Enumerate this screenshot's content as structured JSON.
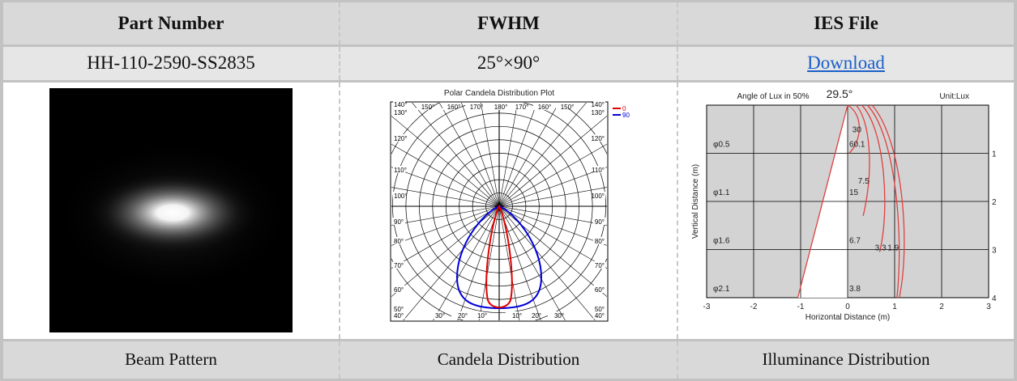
{
  "headers": {
    "part_number": "Part Number",
    "fwhm": "FWHM",
    "ies_file": "IES File"
  },
  "values": {
    "part_number": "HH-110-2590-SS2835",
    "fwhm": "25°×90°",
    "ies_file": "Download"
  },
  "captions": {
    "beam": "Beam Pattern",
    "candela": "Candela Distribution",
    "illuminance": "Illuminance Distribution"
  },
  "polar": {
    "title": "Polar Candela Distribution Plot",
    "legend": [
      "0",
      "90"
    ],
    "series_colors": [
      "#e00000",
      "#0000d8"
    ],
    "left_angles": [
      "140°",
      "130°",
      "120°",
      "110°",
      "100°",
      "90°",
      "80°",
      "70°",
      "60°",
      "50°",
      "40°"
    ],
    "right_angles": [
      "140°",
      "130°",
      "120°",
      "110°",
      "100°",
      "90°",
      "80°",
      "70°",
      "60°",
      "50°",
      "40°"
    ],
    "top_angles": [
      "150°",
      "160°",
      "170°",
      "180°",
      "170°",
      "160°",
      "150°"
    ],
    "bottom_angles": [
      "30°",
      "20°",
      "10°",
      "10°",
      "20°",
      "30°"
    ]
  },
  "illuminance": {
    "title_left": "Angle of Lux in 50%",
    "angle": "29.5°",
    "unit": "Unit:Lux",
    "ylabel": "Vertical Distance (m)",
    "xlabel": "Horizontal Distance (m)",
    "x_ticks": [
      "-3",
      "-2",
      "-1",
      "0",
      "1",
      "2",
      "3"
    ],
    "y_ticks": [
      "1",
      "2",
      "3",
      "4"
    ],
    "diameters": [
      "φ0.5",
      "φ1.1",
      "φ1.6",
      "φ2.1"
    ],
    "center_lux": [
      "60.1",
      "15",
      "6.7",
      "3.8"
    ],
    "contour_labels": [
      "30",
      "7.5",
      "3.3",
      "1.9"
    ],
    "curve_color": "#e04040"
  }
}
